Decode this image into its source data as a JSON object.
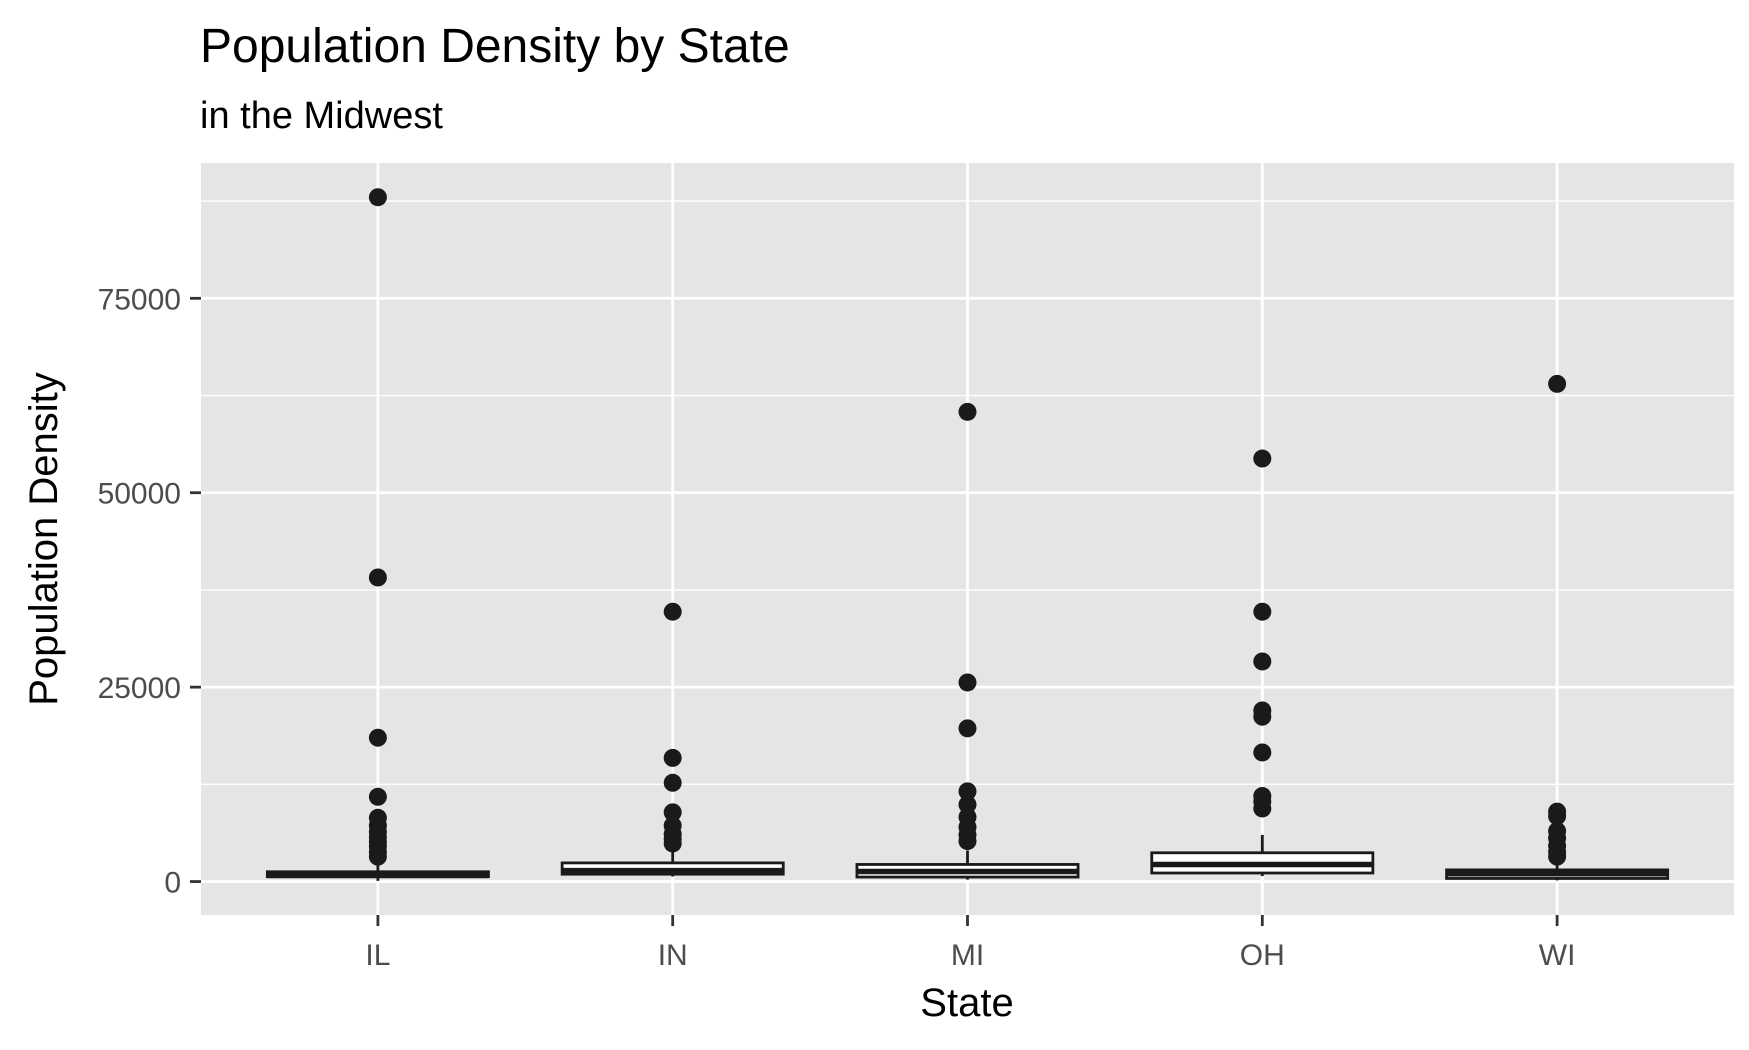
{
  "chart_data": {
    "type": "boxplot",
    "title": "Population Density by State",
    "subtitle": "in the Midwest",
    "xlabel": "State",
    "ylabel": "Population Density",
    "categories": [
      "IL",
      "IN",
      "MI",
      "OH",
      "WI"
    ],
    "ylim": [
      -4300,
      92400
    ],
    "yticks": [
      0,
      25000,
      50000,
      75000
    ],
    "yticks_labels": [
      "0",
      "25000",
      "50000",
      "75000"
    ],
    "grid": true,
    "colors": {
      "panel": "#e5e5e5",
      "grid": "#ffffff",
      "box_fill": "#ffffff",
      "box_stroke": "#1a1a1a",
      "outlier": "#1a1a1a",
      "tick_label": "#4d4d4d",
      "tick_mark": "#333333"
    },
    "boxes": [
      {
        "category": "IL",
        "whisker_low": 90,
        "q1": 620,
        "median": 790,
        "q3": 1260,
        "whisker_high": 2200,
        "outliers": [
          88000,
          39100,
          18500,
          10900,
          8200,
          7200,
          6400,
          5700,
          5100,
          4500,
          3800,
          3200
        ]
      },
      {
        "category": "IN",
        "whisker_low": 650,
        "q1": 950,
        "median": 1400,
        "q3": 2400,
        "whisker_high": 3800,
        "outliers": [
          34700,
          15900,
          12700,
          8900,
          7200,
          6100,
          5500,
          4900
        ]
      },
      {
        "category": "MI",
        "whisker_low": 250,
        "q1": 580,
        "median": 1300,
        "q3": 2200,
        "whisker_high": 4000,
        "outliers": [
          60400,
          25600,
          19700,
          11600,
          9900,
          8300,
          7000,
          6000,
          5200
        ]
      },
      {
        "category": "OH",
        "whisker_low": 700,
        "q1": 1100,
        "median": 2200,
        "q3": 3700,
        "whisker_high": 6000,
        "outliers": [
          54400,
          34700,
          28300,
          22000,
          21200,
          16600,
          11000,
          10300,
          9400
        ]
      },
      {
        "category": "WI",
        "whisker_low": 150,
        "q1": 400,
        "median": 1000,
        "q3": 1500,
        "whisker_high": 2700,
        "outliers": [
          64000,
          9000,
          8400,
          6500,
          5600,
          4600,
          3800,
          3200
        ]
      }
    ]
  }
}
